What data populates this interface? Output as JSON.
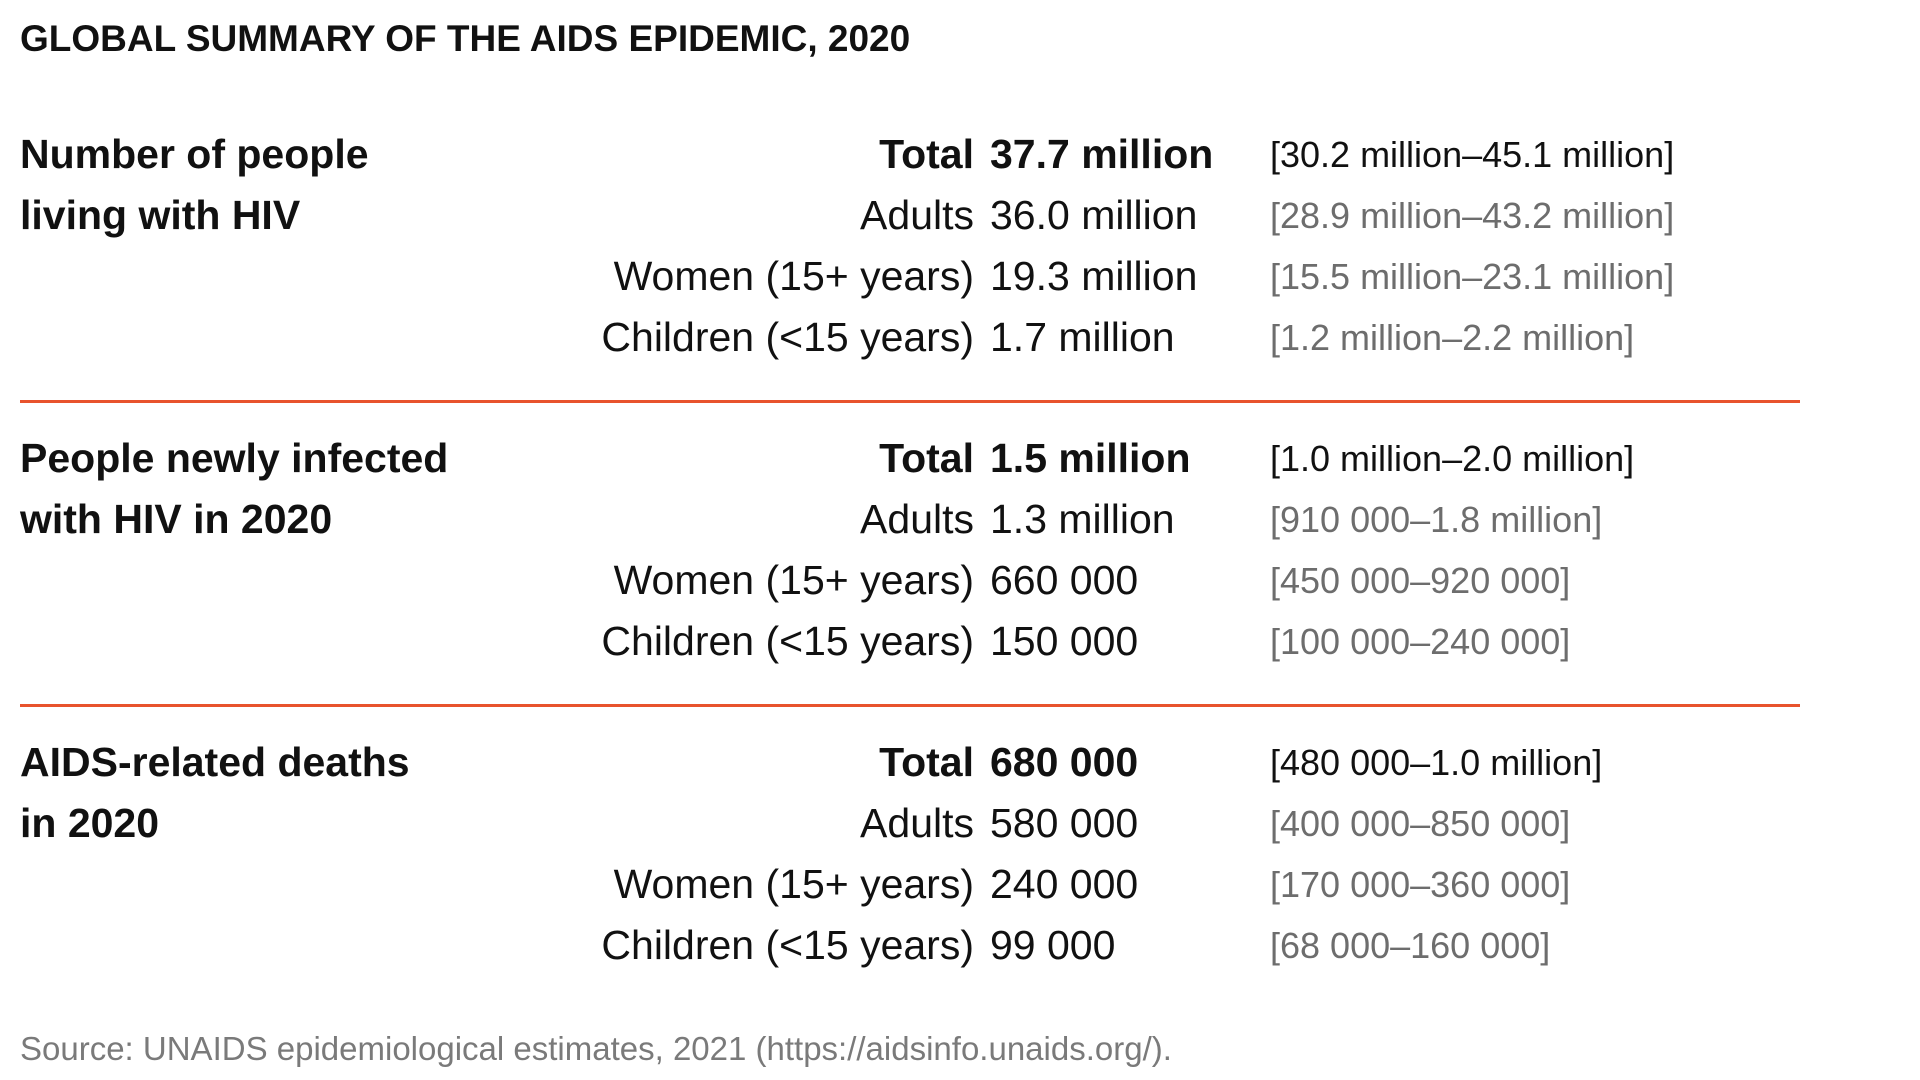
{
  "title": "GLOBAL SUMMARY OF THE AIDS EPIDEMIC, 2020",
  "sections": [
    {
      "label_lines": [
        "Number of people",
        "living with HIV"
      ],
      "rows": [
        {
          "category": "Total",
          "value": "37.7 million",
          "range": "[30.2 million–45.1 million]"
        },
        {
          "category": "Adults",
          "value": "36.0 million",
          "range": "[28.9 million–43.2 million]"
        },
        {
          "category": "Women (15+ years)",
          "value": "19.3 million",
          "range": "[15.5 million–23.1 million]"
        },
        {
          "category": "Children (<15 years)",
          "value": "1.7 million",
          "range": "[1.2 million–2.2 million]"
        }
      ]
    },
    {
      "label_lines": [
        "People newly infected",
        "with HIV in 2020"
      ],
      "rows": [
        {
          "category": "Total",
          "value": "1.5 million",
          "range": "[1.0 million–2.0 million]"
        },
        {
          "category": "Adults",
          "value": "1.3 million",
          "range": "[910 000–1.8 million]"
        },
        {
          "category": "Women (15+ years)",
          "value": "660 000",
          "range": "[450 000–920 000]"
        },
        {
          "category": "Children (<15 years)",
          "value": "150 000",
          "range": "[100 000–240 000]"
        }
      ]
    },
    {
      "label_lines": [
        "AIDS-related deaths",
        "in 2020"
      ],
      "rows": [
        {
          "category": "Total",
          "value": "680 000",
          "range": "[480 000–1.0 million]"
        },
        {
          "category": "Adults",
          "value": "580 000",
          "range": "[400 000–850 000]"
        },
        {
          "category": "Women (15+ years)",
          "value": "240 000",
          "range": "[170 000–360 000]"
        },
        {
          "category": "Children (<15 years)",
          "value": "99 000",
          "range": "[68 000–160 000]"
        }
      ]
    }
  ],
  "source": "Source: UNAIDS epidemiological estimates, 2021 (https://aidsinfo.unaids.org/).",
  "colors": {
    "divider": "#e8532d",
    "text": "#111111",
    "range_text": "#6d6d6d",
    "source_text": "#7a7a7a"
  }
}
